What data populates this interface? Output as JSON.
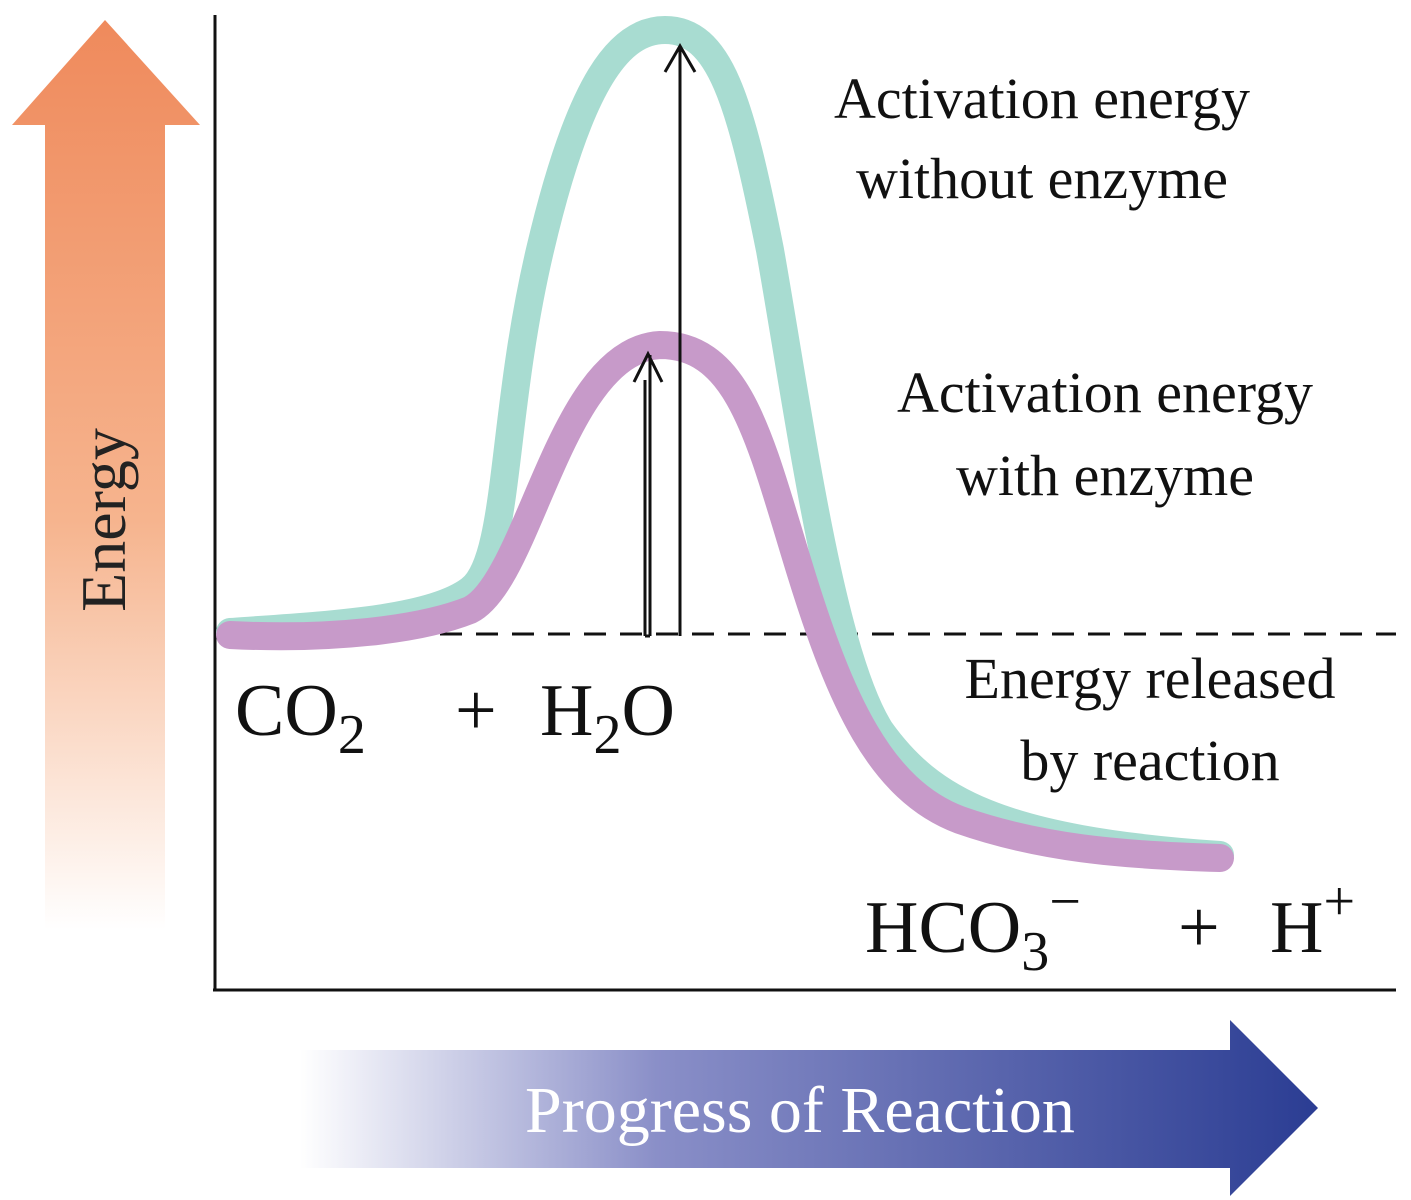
{
  "axes": {
    "y_label": "Energy",
    "x_label": "Progress of Reaction"
  },
  "annotations": {
    "without_enzyme": {
      "lines": [
        "Activation energy",
        "without enzyme"
      ]
    },
    "with_enzyme": {
      "lines": [
        "Activation energy",
        "with enzyme"
      ]
    },
    "released": {
      "lines": [
        "Energy released",
        "by reaction"
      ]
    }
  },
  "reactants": {
    "parts": [
      "CO",
      "2",
      "+",
      "H",
      "2",
      "O"
    ]
  },
  "products": {
    "parts": [
      "HCO",
      "3",
      "−",
      "+",
      "H",
      "+"
    ]
  }
}
